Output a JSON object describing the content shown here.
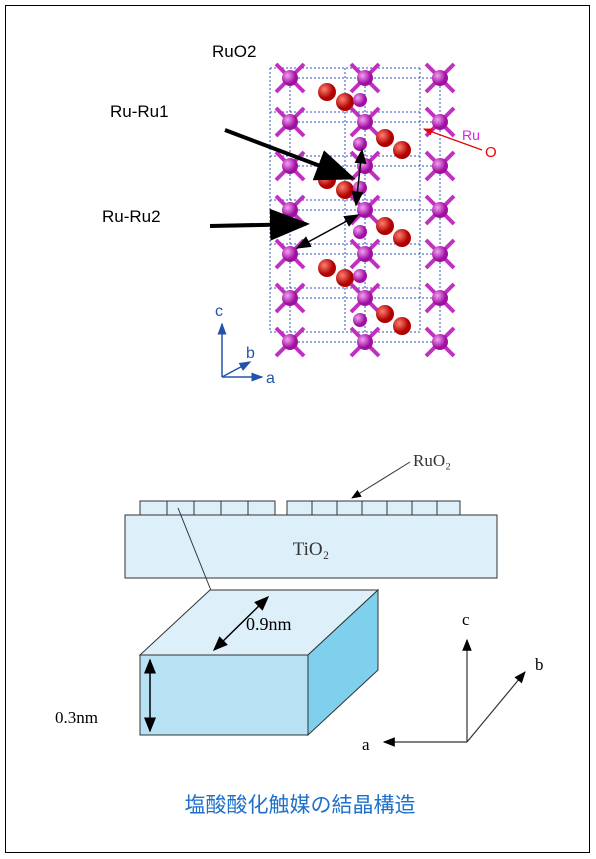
{
  "crystal": {
    "title": "RuO2",
    "bond_1": "Ru-Ru1",
    "bond_2": "Ru-Ru2",
    "atom_ru": "Ru",
    "atom_o": "O",
    "axis_c": "c",
    "axis_b": "b",
    "axis_a": "a"
  },
  "surface": {
    "overlayer": "RuO₂",
    "support": "TiO₂",
    "width": "0.9nm",
    "height": "0.3nm",
    "axis_c": "c",
    "axis_b": "b",
    "axis_a": "a"
  },
  "caption": "塩酸酸化触媒の結晶構造"
}
